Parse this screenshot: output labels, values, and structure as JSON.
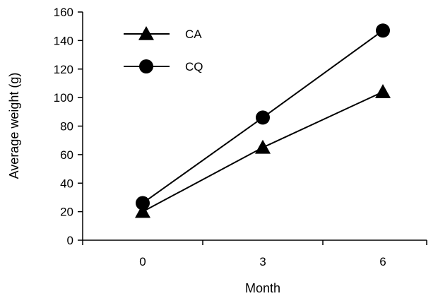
{
  "chart_data": {
    "type": "line",
    "x": [
      0,
      3,
      6
    ],
    "series": [
      {
        "name": "CA",
        "marker": "triangle",
        "values": [
          20,
          65,
          104
        ]
      },
      {
        "name": "CQ",
        "marker": "circle",
        "values": [
          26,
          86,
          147
        ]
      }
    ],
    "xlabel": "Month",
    "ylabel": "Average weight (g)",
    "ylim": [
      0,
      160
    ],
    "yticks": [
      0,
      20,
      40,
      60,
      80,
      100,
      120,
      140,
      160
    ],
    "xticks": [
      0,
      3,
      6
    ],
    "grid": false,
    "legend_position": "top-left",
    "colors": {
      "line": "#000000",
      "marker": "#000000"
    }
  }
}
